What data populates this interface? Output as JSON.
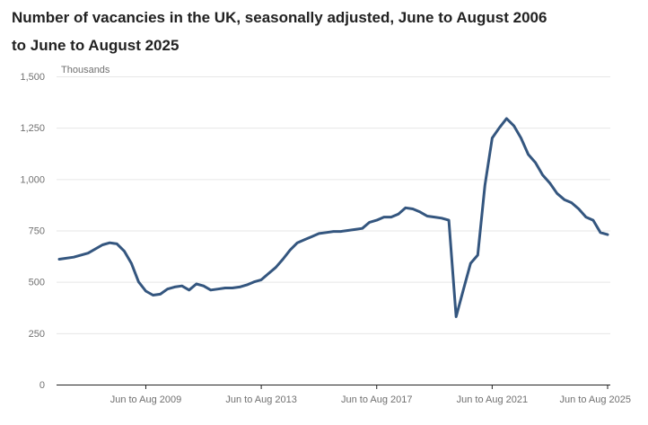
{
  "chart_data": {
    "type": "line",
    "title": "Number of vacancies in the UK, seasonally adjusted, June to August 2006 to June to August 2025",
    "ylabel": "Thousands",
    "xlabel": "",
    "ylim": [
      0,
      1500
    ],
    "y_ticks": [
      "0",
      "250",
      "500",
      "750",
      "1,000",
      "1,250",
      "1,500"
    ],
    "x_ticks": [
      "Jun to Aug 2009",
      "Jun to Aug 2013",
      "Jun to Aug 2017",
      "Jun to Aug 2021",
      "Jun to Aug 2025"
    ],
    "grid": true,
    "legend": "none",
    "line_color": "#34567f",
    "series": [
      {
        "points": [
          [
            "Jun to Aug 2006",
            610
          ],
          [
            "Dec to Feb 2007",
            620
          ],
          [
            "Jun to Aug 2007",
            640
          ],
          [
            "Dec to Feb 2008",
            680
          ],
          [
            "Mar to May 2008",
            690
          ],
          [
            "Jun to Aug 2008",
            685
          ],
          [
            "Sep to Nov 2008",
            650
          ],
          [
            "Dec to Feb 2009",
            590
          ],
          [
            "Mar to May 2009",
            500
          ],
          [
            "Jun to Aug 2009",
            455
          ],
          [
            "Sep to Nov 2009",
            435
          ],
          [
            "Dec to Feb 2010",
            440
          ],
          [
            "Mar to May 2010",
            465
          ],
          [
            "Jun to Aug 2010",
            475
          ],
          [
            "Sep to Nov 2010",
            480
          ],
          [
            "Dec to Feb 2011",
            460
          ],
          [
            "Mar to May 2011",
            490
          ],
          [
            "Jun to Aug 2011",
            480
          ],
          [
            "Sep to Nov 2011",
            460
          ],
          [
            "Dec to Feb 2012",
            465
          ],
          [
            "Mar to May 2012",
            470
          ],
          [
            "Jun to Aug 2012",
            470
          ],
          [
            "Sep to Nov 2012",
            475
          ],
          [
            "Dec to Feb 2013",
            485
          ],
          [
            "Mar to May 2013",
            500
          ],
          [
            "Jun to Aug 2013",
            510
          ],
          [
            "Sep to Nov 2013",
            540
          ],
          [
            "Dec to Feb 2014",
            570
          ],
          [
            "Mar to May 2014",
            610
          ],
          [
            "Jun to Aug 2014",
            655
          ],
          [
            "Sep to Nov 2014",
            690
          ],
          [
            "Dec to Feb 2015",
            705
          ],
          [
            "Mar to May 2015",
            720
          ],
          [
            "Jun to Aug 2015",
            735
          ],
          [
            "Sep to Nov 2015",
            740
          ],
          [
            "Dec to Feb 2016",
            745
          ],
          [
            "Mar to May 2016",
            745
          ],
          [
            "Jun to Aug 2016",
            750
          ],
          [
            "Sep to Nov 2016",
            755
          ],
          [
            "Dec to Feb 2017",
            760
          ],
          [
            "Mar to May 2017",
            790
          ],
          [
            "Jun to Aug 2017",
            800
          ],
          [
            "Sep to Nov 2017",
            815
          ],
          [
            "Dec to Feb 2018",
            815
          ],
          [
            "Mar to May 2018",
            830
          ],
          [
            "Jun to Aug 2018",
            860
          ],
          [
            "Sep to Nov 2018",
            855
          ],
          [
            "Dec to Feb 2019",
            840
          ],
          [
            "Mar to May 2019",
            820
          ],
          [
            "Jun to Aug 2019",
            815
          ],
          [
            "Sep to Nov 2019",
            810
          ],
          [
            "Dec to Feb 2020",
            800
          ],
          [
            "Mar to May 2020",
            330
          ],
          [
            "Jun to Aug 2020",
            460
          ],
          [
            "Sep to Nov 2020",
            590
          ],
          [
            "Dec to Feb 2021",
            630
          ],
          [
            "Mar to May 2021",
            970
          ],
          [
            "Jun to Aug 2021",
            1200
          ],
          [
            "Sep to Nov 2021",
            1250
          ],
          [
            "Dec to Feb 2022",
            1295
          ],
          [
            "Mar to May 2022",
            1260
          ],
          [
            "Jun to Aug 2022",
            1200
          ],
          [
            "Sep to Nov 2022",
            1120
          ],
          [
            "Dec to Feb 2023",
            1080
          ],
          [
            "Mar to May 2023",
            1020
          ],
          [
            "Jun to Aug 2023",
            980
          ],
          [
            "Sep to Nov 2023",
            930
          ],
          [
            "Dec to Feb 2024",
            900
          ],
          [
            "Mar to May 2024",
            885
          ],
          [
            "Jun to Aug 2024",
            855
          ],
          [
            "Sep to Nov 2024",
            815
          ],
          [
            "Dec to Feb 2025",
            800
          ],
          [
            "Mar to May 2025",
            740
          ],
          [
            "Jun to Aug 2025",
            730
          ]
        ]
      }
    ]
  }
}
